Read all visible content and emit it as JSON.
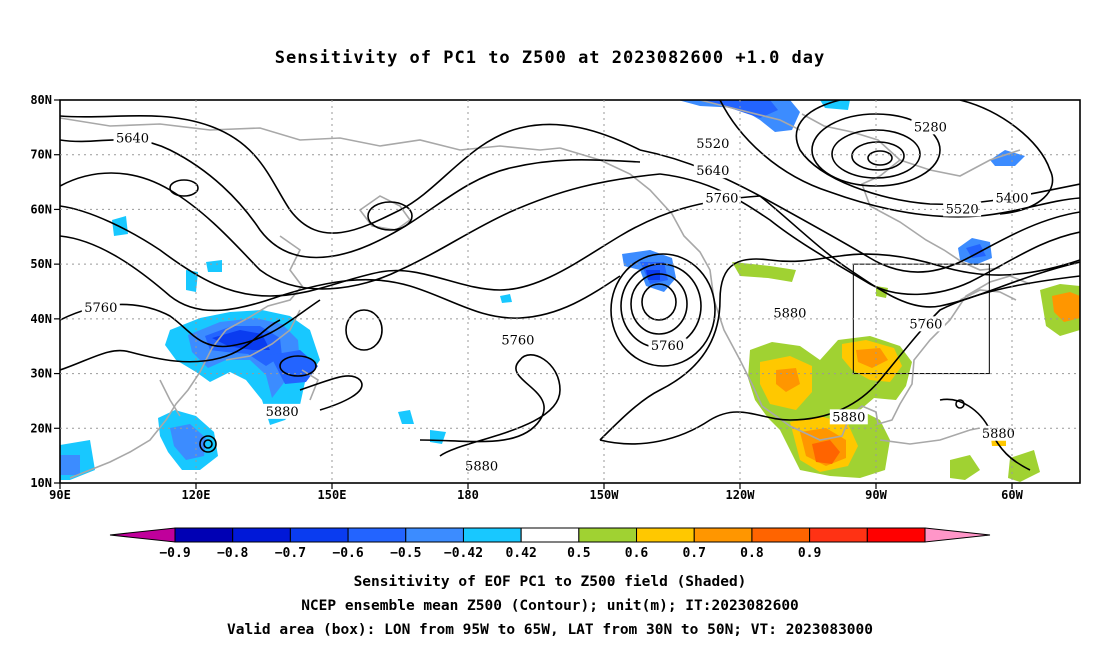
{
  "title": "Sensitivity of PC1 to Z500 at 2023082600 +1.0 day",
  "map": {
    "lon_range_east": [
      90,
      315
    ],
    "lat_range": [
      10,
      80
    ],
    "lat_ticks": [
      "80N",
      "70N",
      "60N",
      "50N",
      "40N",
      "30N",
      "20N",
      "10N"
    ],
    "lon_ticks": [
      "90E",
      "120E",
      "150E",
      "180",
      "150W",
      "120W",
      "90W",
      "60W"
    ],
    "contour_labels": [
      {
        "text": "5640",
        "lon": 106,
        "lat": 73
      },
      {
        "text": "5520",
        "lon": 234,
        "lat": 72
      },
      {
        "text": "5640",
        "lon": 234,
        "lat": 67
      },
      {
        "text": "5760",
        "lon": 236,
        "lat": 62
      },
      {
        "text": "5280",
        "lon": 282,
        "lat": 75
      },
      {
        "text": "5400",
        "lon": 300,
        "lat": 62
      },
      {
        "text": "5520",
        "lon": 289,
        "lat": 60
      },
      {
        "text": "5760",
        "lon": 99,
        "lat": 42
      },
      {
        "text": "5760",
        "lon": 191,
        "lat": 36
      },
      {
        "text": "5760",
        "lon": 224,
        "lat": 35
      },
      {
        "text": "5880",
        "lon": 251,
        "lat": 41
      },
      {
        "text": "5760",
        "lon": 281,
        "lat": 39
      },
      {
        "text": "5880",
        "lon": 139,
        "lat": 23
      },
      {
        "text": "5880",
        "lon": 183,
        "lat": 13
      },
      {
        "text": "5880",
        "lon": 264,
        "lat": 22
      },
      {
        "text": "5880",
        "lon": 297,
        "lat": 19
      }
    ],
    "valid_box": {
      "lon": [
        265,
        295
      ],
      "lat": [
        30,
        50
      ]
    },
    "contour_color": "#000000",
    "coast_color": "#a8a8a8"
  },
  "colorbar": {
    "colors": [
      "#c0009b",
      "#0000b4",
      "#0018d8",
      "#0a3cf0",
      "#2364ff",
      "#3c8cff",
      "#18c8ff",
      "#ffffff",
      "#a0d232",
      "#ffc800",
      "#ff9600",
      "#ff6400",
      "#ff3214",
      "#ff0000",
      "#ff96c8"
    ],
    "labels": [
      "-0.9",
      "-0.8",
      "-0.7",
      "-0.6",
      "-0.5",
      "-0.42",
      "0.42",
      "0.5",
      "0.6",
      "0.7",
      "0.8",
      "0.9"
    ]
  },
  "captions": {
    "line1": "Sensitivity of EOF PC1 to Z500 field (Shaded)",
    "line2": "NCEP ensemble mean Z500 (Contour); unit(m); IT:2023082600",
    "line3": "Valid area (box): LON from 95W to 65W, LAT from 30N to 50N; VT: 2023083000"
  }
}
